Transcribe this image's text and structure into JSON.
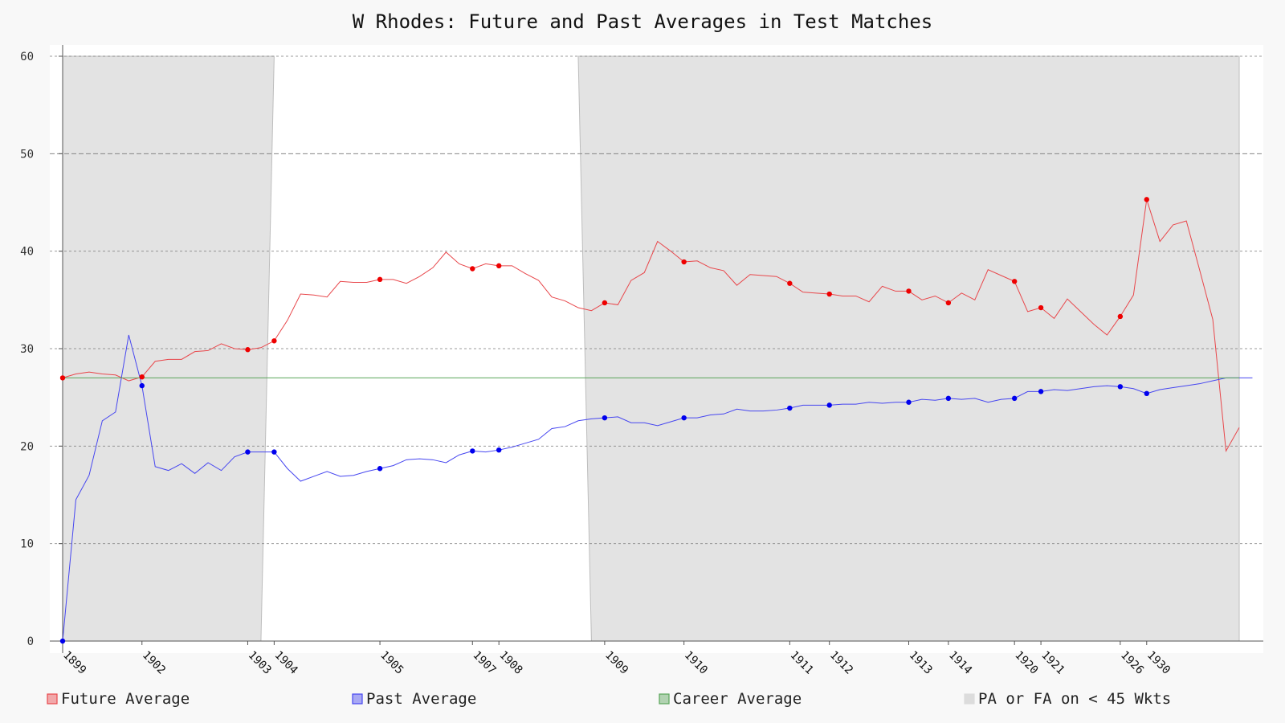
{
  "chart_data": {
    "type": "line",
    "title": "W Rhodes: Future and Past Averages in Test Matches",
    "xlabel": "",
    "ylabel": "",
    "ylim": [
      0,
      60
    ],
    "yticks": [
      0,
      10,
      20,
      30,
      40,
      50,
      60
    ],
    "grid": true,
    "legend_position": "bottom",
    "match_count": 90,
    "x_tick_labels": [
      {
        "label": "1899",
        "match": 0
      },
      {
        "label": "1902",
        "match": 6
      },
      {
        "label": "1903",
        "match": 14
      },
      {
        "label": "1904",
        "match": 16
      },
      {
        "label": "1905",
        "match": 24
      },
      {
        "label": "1907",
        "match": 31
      },
      {
        "label": "1908",
        "match": 33
      },
      {
        "label": "1909",
        "match": 41
      },
      {
        "label": "1910",
        "match": 47
      },
      {
        "label": "1911",
        "match": 55
      },
      {
        "label": "1912",
        "match": 58
      },
      {
        "label": "1913",
        "match": 64
      },
      {
        "label": "1914",
        "match": 67
      },
      {
        "label": "1920",
        "match": 72
      },
      {
        "label": "1921",
        "match": 74
      },
      {
        "label": "1926",
        "match": 80
      },
      {
        "label": "1930",
        "match": 82
      }
    ],
    "series": [
      {
        "name": "Future Average",
        "color": "#e8474b",
        "values": [
          27.0,
          27.4,
          27.6,
          27.4,
          27.3,
          26.7,
          27.1,
          28.7,
          28.9,
          28.9,
          29.7,
          29.8,
          30.5,
          30.0,
          29.9,
          30.1,
          30.8,
          32.9,
          35.6,
          35.5,
          35.3,
          36.9,
          36.8,
          36.8,
          37.1,
          37.1,
          36.7,
          37.4,
          38.3,
          39.9,
          38.7,
          38.2,
          38.7,
          38.5,
          38.5,
          37.7,
          37.0,
          35.3,
          34.9,
          34.2,
          33.9,
          34.7,
          34.5,
          37.0,
          37.8,
          41.0,
          40.0,
          38.9,
          39.0,
          38.3,
          38.0,
          36.5,
          37.6,
          37.5,
          37.4,
          36.7,
          35.8,
          35.7,
          35.6,
          35.4,
          35.4,
          34.8,
          36.4,
          35.9,
          35.9,
          35.0,
          35.4,
          34.7,
          35.7,
          35.0,
          38.1,
          37.5,
          36.9,
          33.8,
          34.2,
          33.1,
          35.1,
          33.8,
          32.5,
          31.4,
          33.3,
          35.5,
          45.3,
          41.0,
          42.7,
          43.1,
          38.1,
          33.0,
          19.5,
          21.9
        ],
        "markers": [
          0,
          6,
          14,
          16,
          24,
          31,
          33,
          41,
          47,
          55,
          58,
          64,
          67,
          72,
          74,
          80,
          82
        ]
      },
      {
        "name": "Past Average",
        "color": "#4646f0",
        "values": [
          0.0,
          14.5,
          17.0,
          22.6,
          23.5,
          31.4,
          26.2,
          17.9,
          17.5,
          18.2,
          17.2,
          18.3,
          17.5,
          18.9,
          19.4,
          19.4,
          19.4,
          17.7,
          16.4,
          16.9,
          17.4,
          16.9,
          17.0,
          17.4,
          17.7,
          18.0,
          18.6,
          18.7,
          18.6,
          18.3,
          19.1,
          19.5,
          19.4,
          19.6,
          19.9,
          20.3,
          20.7,
          21.8,
          22.0,
          22.6,
          22.8,
          22.9,
          23.0,
          22.4,
          22.4,
          22.1,
          22.5,
          22.9,
          22.9,
          23.2,
          23.3,
          23.8,
          23.6,
          23.6,
          23.7,
          23.9,
          24.2,
          24.2,
          24.2,
          24.3,
          24.3,
          24.5,
          24.4,
          24.5,
          24.5,
          24.8,
          24.7,
          24.9,
          24.8,
          24.9,
          24.5,
          24.8,
          24.9,
          25.6,
          25.6,
          25.8,
          25.7,
          25.9,
          26.1,
          26.2,
          26.1,
          25.9,
          25.4,
          25.8,
          26.0,
          26.2,
          26.4,
          26.7,
          27.0,
          27.0,
          27.0
        ],
        "markers": [
          0,
          6,
          14,
          16,
          24,
          31,
          33,
          41,
          47,
          55,
          58,
          64,
          67,
          72,
          74,
          80,
          82
        ]
      },
      {
        "name": "Career Average",
        "color": "#5aa55a",
        "values": [
          27.0,
          27.0
        ]
      }
    ],
    "shaded_regions": [
      {
        "name": "PA or FA on < 45 Wkts",
        "from_match": 0,
        "to_match_top": 16,
        "to_match_bottom": 15
      },
      {
        "name": "PA or FA on < 45 Wkts",
        "from_match_top": 39,
        "from_match_bottom": 40,
        "to_match": 89
      }
    ],
    "legend": [
      {
        "label": "Future Average",
        "color": "#e8474b"
      },
      {
        "label": "Past Average",
        "color": "#4646f0"
      },
      {
        "label": "Career Average",
        "color": "#5aa55a"
      },
      {
        "label": "PA or FA on < 45 Wkts",
        "color": "#dcdcdc"
      }
    ]
  }
}
